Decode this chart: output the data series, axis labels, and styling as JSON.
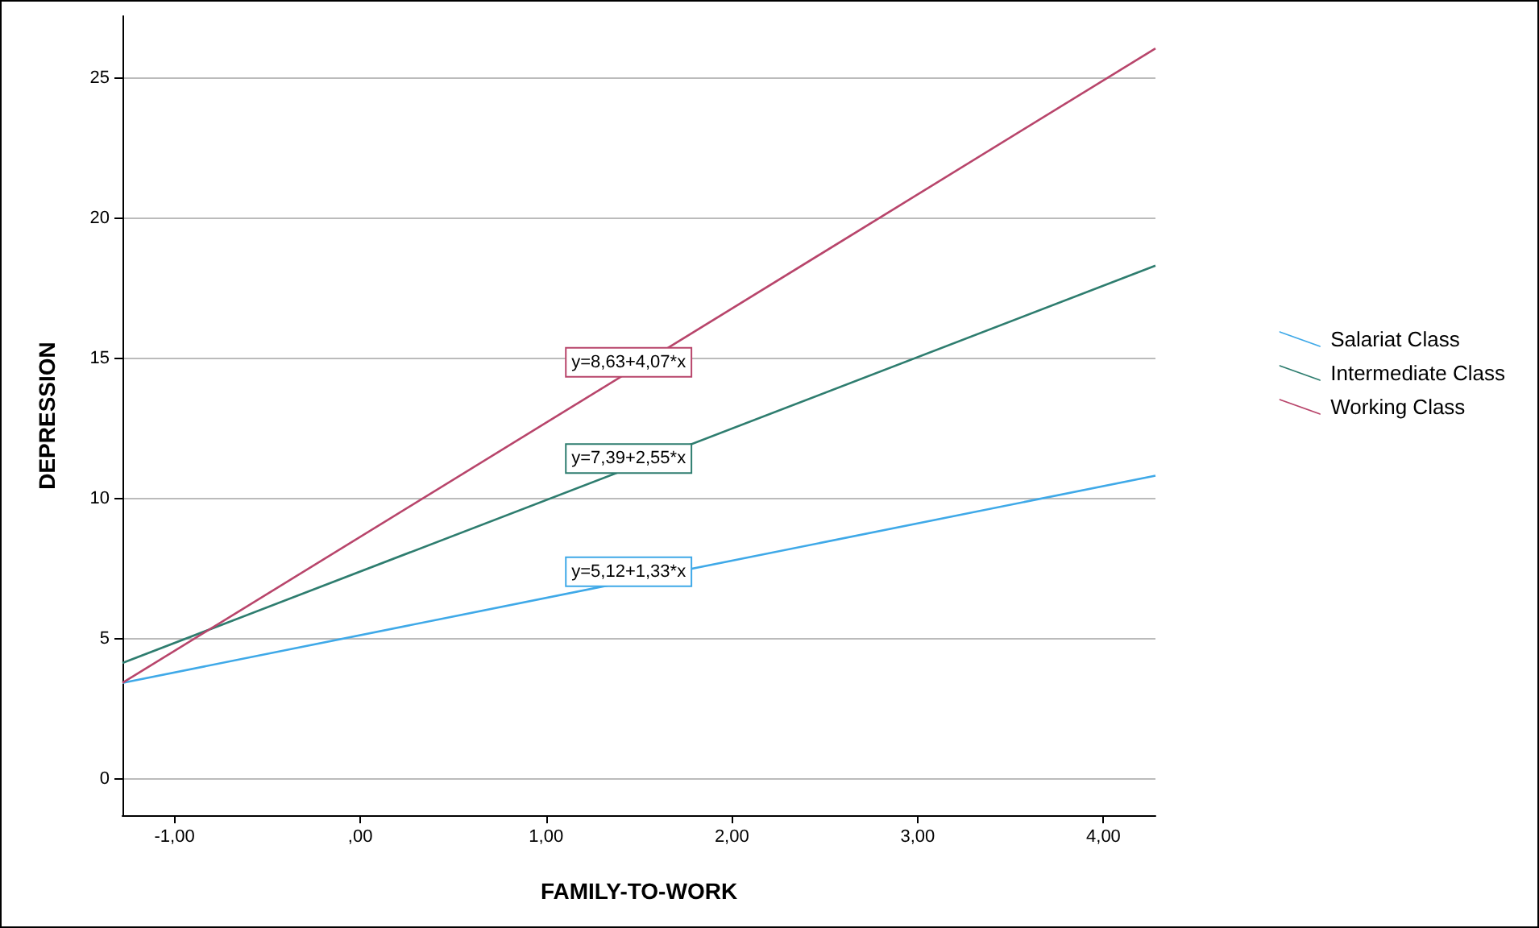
{
  "chart_data": {
    "type": "line",
    "xlabel": "FAMILY-TO-WORK",
    "ylabel": "DEPRESSION",
    "series": [
      {
        "name": "Salariat Class",
        "color": "#3fa9e8",
        "values": [
          3.42,
          10.81
        ]
      },
      {
        "name": "Intermediate Class",
        "color": "#2e7d6f",
        "values": [
          4.13,
          18.3
        ]
      },
      {
        "name": "Working Class",
        "color": "#b8456b",
        "values": [
          3.42,
          26.05
        ]
      }
    ],
    "x": [
      -1.28,
      4.28
    ],
    "xlim": [
      -1.28,
      4.28
    ],
    "ylim": [
      -1.3,
      27.2
    ],
    "xticks": [
      {
        "value": -1,
        "label": "-1,00"
      },
      {
        "value": 0,
        "label": ",00"
      },
      {
        "value": 1,
        "label": "1,00"
      },
      {
        "value": 2,
        "label": "2,00"
      },
      {
        "value": 3,
        "label": "3,00"
      },
      {
        "value": 4,
        "label": "4,00"
      }
    ],
    "yticks": [
      0,
      5,
      10,
      15,
      20,
      25
    ],
    "annotations": [
      "y=5,12+1,33*x",
      "y=7,39+2,55*x",
      "y=8,63+4,07*x"
    ],
    "grid": "y",
    "legend": "right",
    "marker": "none",
    "line_style": "solid"
  }
}
